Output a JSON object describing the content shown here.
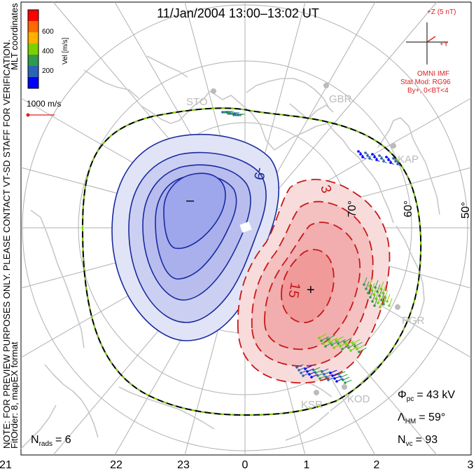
{
  "title": "11/Jan/2004 13:00–13:02 UT",
  "side_note": {
    "line1": "NOTE: FOR PREVIEW PURPOSES ONLY. PLEASE CONTACT VT-SD STAFF FOR VERIFICATION.",
    "line2": "FitOrder: 8, mapEX format"
  },
  "coord_label": "MLT coordinates",
  "color_bar": {
    "label": "Vel [m/s]",
    "ticks": [
      "600",
      "400",
      "200"
    ],
    "colors": [
      "#ff0000",
      "#ff6a00",
      "#ffb000",
      "#7cd000",
      "#2f9a50",
      "#2b64b4",
      "#0000ff"
    ]
  },
  "vector_scale": {
    "label": "1000 m/s",
    "color": "#dd2222"
  },
  "imf": {
    "z_label": "+Z (5 nT)",
    "y_label": "+Y",
    "title": "OMNI IMF",
    "model": "Stat Mod: RG96",
    "condition": "By+, 0<BT<4",
    "color": "#e02020"
  },
  "latitude_labels": [
    "70°",
    "60°",
    "50°"
  ],
  "potential_labels": {
    "negative_contour": "-9",
    "positive_contour_outer": "3",
    "positive_contour_inner": "15",
    "min_marker": "–",
    "max_marker": "+"
  },
  "stations": [
    "STO",
    "GBR",
    "KAP",
    "PGR",
    "KSR",
    "KOD"
  ],
  "stats": {
    "phi_pc": "Φ",
    "phi_pc_sub": "pc",
    "phi_pc_value": "= 43 kV",
    "lambda_hm": "Λ",
    "lambda_hm_sub": "HM",
    "lambda_hm_value": "= 59°",
    "n_vc": "N",
    "n_vc_sub": "vc",
    "n_vc_value": "= 93"
  },
  "n_rads": {
    "symbol": "N",
    "sub": "rads",
    "value": "= 6"
  },
  "mlt_axis": [
    "21",
    "22",
    "23",
    "0",
    "1",
    "2",
    "3"
  ],
  "colors": {
    "negative_line": "#1a2aa0",
    "negative_fill_outer": "#e1e4f6",
    "negative_fill_inner": "#9ea6ec",
    "positive_line": "#c81818",
    "positive_fill_outer": "#f8dcdc",
    "positive_fill_inner": "#f09a9a",
    "coast": "#c8c8c8",
    "grid": "#b0b0b0",
    "hm_boundary_outer": "#000000",
    "hm_boundary_dash": "#7cd000"
  }
}
